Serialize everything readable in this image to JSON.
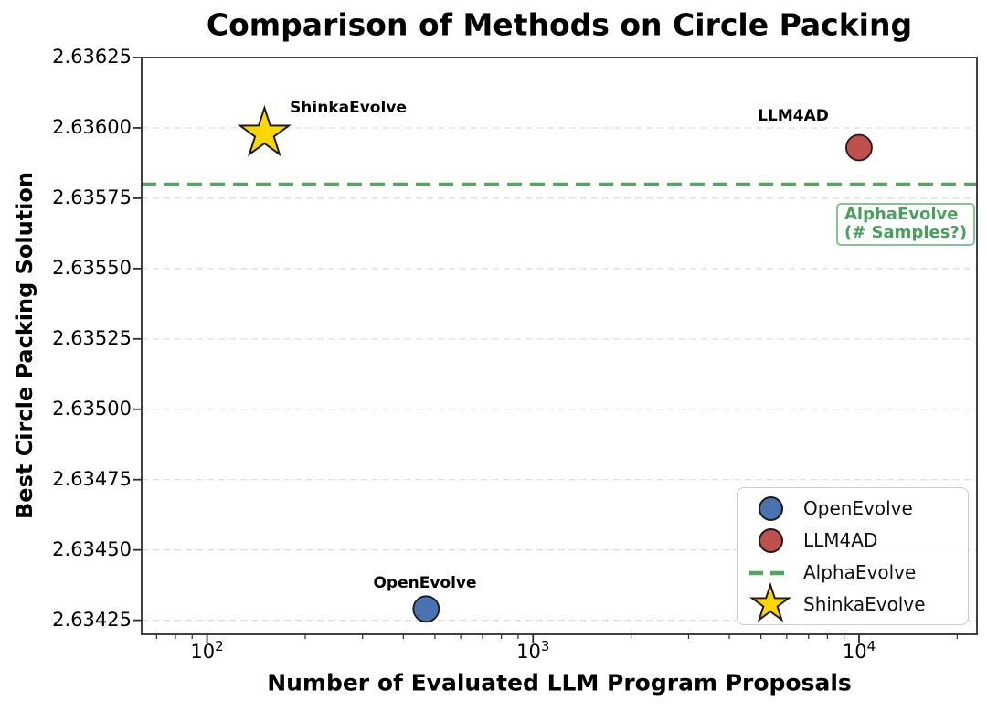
{
  "chart": {
    "title": "Comparison of Methods on Circle Packing",
    "xlabel": "Number of Evaluated LLM Program Proposals",
    "ylabel": "Best Circle Packing Solution"
  },
  "chart_data": {
    "type": "scatter",
    "x_scale": "log",
    "x_range": [
      63,
      23000
    ],
    "y_range": [
      2.6342,
      2.63625
    ],
    "grid": "horizontal-dashed",
    "grid_color": "#dcdcdc",
    "spine_color": "#2e2e2e",
    "points": [
      {
        "name": "OpenEvolve",
        "x": 470,
        "y": 2.63429,
        "marker": "circle",
        "color": "#4a72b0"
      },
      {
        "name": "LLM4AD",
        "x": 10000,
        "y": 2.63593,
        "marker": "circle",
        "color": "#c0504d"
      },
      {
        "name": "ShinkaEvolve",
        "x": 150,
        "y": 2.63598,
        "marker": "star",
        "color": "#ffd700"
      }
    ],
    "hline": {
      "name": "AlphaEvolve",
      "y": 2.6358,
      "color": "#4fa85e",
      "style": "dashed"
    },
    "annotation": {
      "line1": "AlphaEvolve",
      "line2": "(# Samples?)"
    },
    "y_ticks": [
      {
        "value": 2.63625,
        "label": "2.63625"
      },
      {
        "value": 2.636,
        "label": "2.63600"
      },
      {
        "value": 2.63575,
        "label": "2.63575"
      },
      {
        "value": 2.6355,
        "label": "2.63550"
      },
      {
        "value": 2.63525,
        "label": "2.63525"
      },
      {
        "value": 2.635,
        "label": "2.63500"
      },
      {
        "value": 2.63475,
        "label": "2.63475"
      },
      {
        "value": 2.6345,
        "label": "2.63450"
      },
      {
        "value": 2.63425,
        "label": "2.63425"
      }
    ],
    "x_ticks": [
      {
        "value": 100,
        "base": "10",
        "exp": "2"
      },
      {
        "value": 1000,
        "base": "10",
        "exp": "3"
      },
      {
        "value": 10000,
        "base": "10",
        "exp": "4"
      }
    ],
    "x_minor_ticks": [
      70,
      80,
      90,
      200,
      300,
      400,
      500,
      600,
      700,
      800,
      900,
      2000,
      3000,
      4000,
      5000,
      6000,
      7000,
      8000,
      9000,
      20000
    ],
    "legend": [
      {
        "label": "OpenEvolve",
        "marker": "circle",
        "color": "#4a72b0"
      },
      {
        "label": "LLM4AD",
        "marker": "circle",
        "color": "#c0504d"
      },
      {
        "label": "AlphaEvolve",
        "marker": "dash",
        "color": "#4fa85e"
      },
      {
        "label": "ShinkaEvolve",
        "marker": "star",
        "color": "#ffd700"
      }
    ]
  }
}
